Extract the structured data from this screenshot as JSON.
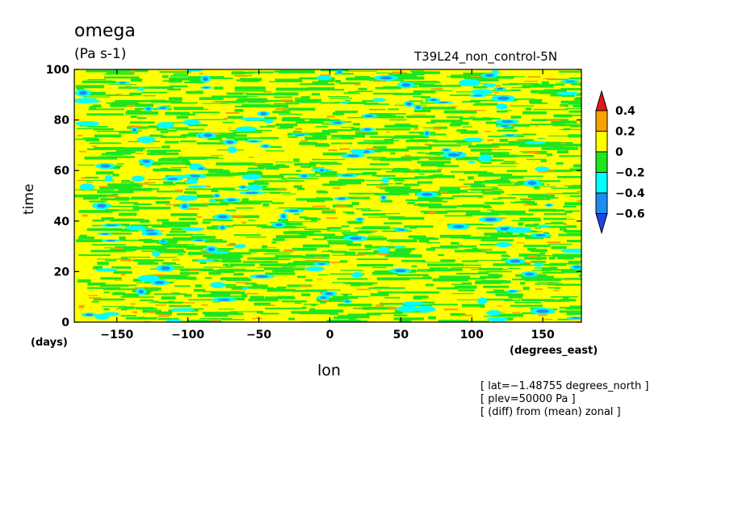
{
  "chart_data": {
    "type": "heatmap",
    "title": "omega",
    "units": "(Pa s-1)",
    "run_name": "T39L24_non_control-5N",
    "xlabel": "lon",
    "ylabel": "time",
    "x_units": "(degrees_east)",
    "y_units": "(days)",
    "xlim": [
      -180,
      177.2
    ],
    "ylim": [
      0,
      100
    ],
    "x_ticks": [
      -150,
      -100,
      -50,
      0,
      50,
      100,
      150
    ],
    "y_ticks": [
      0,
      20,
      40,
      60,
      80,
      100
    ],
    "x_tick_labels": [
      "−150",
      "−100",
      "−50",
      "0",
      "50",
      "100",
      "150"
    ],
    "y_tick_labels": [
      "0",
      "20",
      "40",
      "60",
      "80",
      "100"
    ],
    "colorbar": {
      "levels": [
        0.4,
        0.2,
        0,
        -0.2,
        -0.4,
        -0.6
      ],
      "labels": [
        "0.4",
        "0.2",
        "0",
        "−0.2",
        "−0.4",
        "−0.6"
      ],
      "colors": [
        "#e8141c",
        "#f5a300",
        "#ffff00",
        "#1ee61e",
        "#00ffff",
        "#1e8cf0",
        "#1e46e6"
      ]
    },
    "annotations": [
      "[ lat=−1.48755 degrees_north ]",
      "[ plev=50000 Pa ]",
      "[ (diff) from (mean) zonal ]"
    ]
  }
}
